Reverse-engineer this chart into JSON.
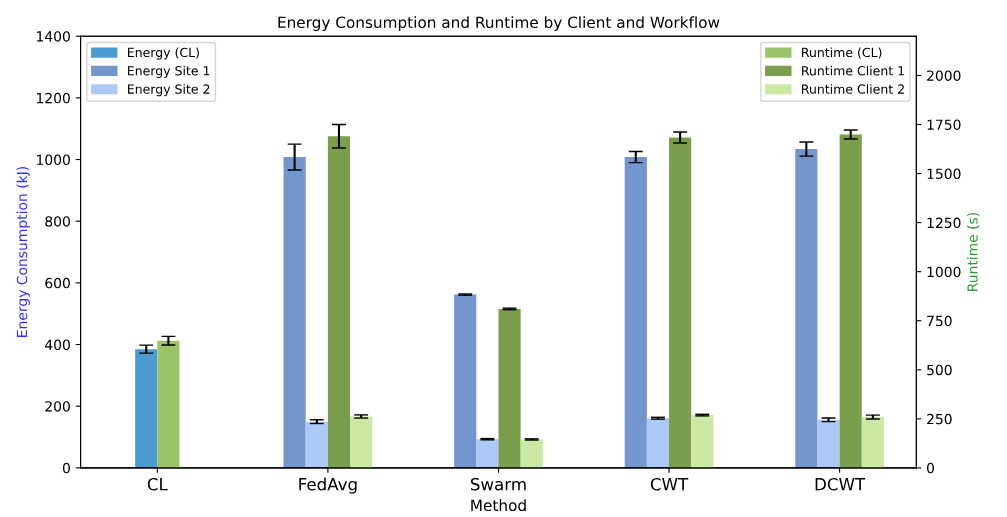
{
  "chart_data": {
    "type": "bar",
    "title": "Energy Consumption and Runtime by Client and Workflow",
    "xlabel": "Method",
    "ylabel": "Energy Consumption (kJ)",
    "y2label": "Runtime (s)",
    "categories": [
      "CL",
      "FedAvg",
      "Swarm",
      "CWT",
      "DCWT"
    ],
    "series": [
      {
        "name": "Energy (CL)",
        "color": "#4c9bd0",
        "values": [
          385,
          null,
          null,
          null,
          null
        ],
        "errors": [
          13,
          null,
          null,
          null,
          null
        ]
      },
      {
        "name": "Energy Site 1",
        "color": "#7396cf",
        "values": [
          null,
          1008,
          562,
          1008,
          1034
        ],
        "errors": [
          null,
          42,
          2,
          18,
          23
        ]
      },
      {
        "name": "Energy Site 2",
        "color": "#adc9f5",
        "values": [
          null,
          150,
          93,
          161,
          156
        ],
        "errors": [
          null,
          6,
          2,
          3,
          6
        ]
      },
      {
        "name": "Runtime (CL)",
        "color": "#9bc46a",
        "axis": "y2",
        "values": [
          648,
          null,
          null,
          null,
          null
        ],
        "errors": [
          22,
          null,
          null,
          null,
          null
        ]
      },
      {
        "name": "Runtime Client 1",
        "color": "#7a9e4b",
        "axis": "y2",
        "values": [
          null,
          1690,
          810,
          1684,
          1699
        ],
        "errors": [
          null,
          60,
          4,
          28,
          23
        ]
      },
      {
        "name": "Runtime Client 2",
        "color": "#cce8a5",
        "axis": "y2",
        "values": [
          null,
          262,
          145,
          269,
          259
        ],
        "errors": [
          null,
          8,
          3,
          4,
          10
        ]
      }
    ],
    "ylim": [
      0,
      1400
    ],
    "yticks": [
      0,
      200,
      400,
      600,
      800,
      1000,
      1200,
      1400
    ],
    "y2lim": [
      0,
      2200
    ],
    "y2ticks": [
      0,
      250,
      500,
      750,
      1000,
      1250,
      1500,
      1750,
      2000
    ],
    "grid": false,
    "legend": "top left"
  }
}
